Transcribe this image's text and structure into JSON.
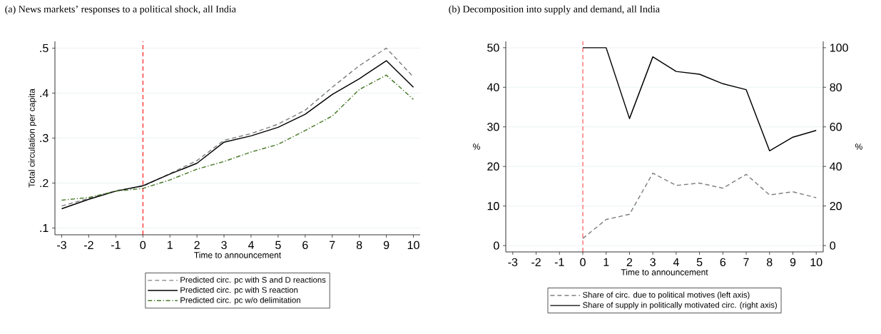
{
  "chart_data": [
    {
      "type": "line",
      "title": "(a) News markets’ responses to a political shock, all India",
      "xlabel": "Time to announcement",
      "ylabel": "Total circulation per capita",
      "x": [
        -3,
        -2,
        -1,
        0,
        1,
        2,
        3,
        4,
        5,
        6,
        7,
        8,
        9,
        10
      ],
      "series": [
        {
          "name": "Predicted circ. pc with S and D reactions",
          "color": "#808080",
          "line_style": "dashed",
          "values": [
            0.149,
            0.166,
            0.183,
            0.193,
            0.221,
            0.25,
            0.295,
            0.31,
            0.331,
            0.362,
            0.413,
            0.461,
            0.5,
            0.436
          ]
        },
        {
          "name": "Predicted circ. pc with S reaction",
          "color": "#000000",
          "line_style": "solid",
          "values": [
            0.143,
            0.164,
            0.182,
            0.194,
            0.22,
            0.244,
            0.291,
            0.305,
            0.324,
            0.353,
            0.397,
            0.432,
            0.472,
            0.413
          ]
        },
        {
          "name": "Predicted circ. pc w/o delimitation",
          "color": "#4a7a2a",
          "line_style": "dashdot",
          "values": [
            0.162,
            0.168,
            0.182,
            0.188,
            0.207,
            0.231,
            0.248,
            0.269,
            0.286,
            0.317,
            0.349,
            0.408,
            0.44,
            0.386
          ]
        }
      ],
      "xlim": [
        -3.25,
        10.25
      ],
      "xticks": [
        -3,
        -2,
        -1,
        0,
        1,
        2,
        3,
        4,
        5,
        6,
        7,
        8,
        9,
        10
      ],
      "ylim": [
        0.085,
        0.515
      ],
      "yticks": [
        {
          "value": 0.1,
          "label": ".1"
        },
        {
          "value": 0.2,
          "label": ".2"
        },
        {
          "value": 0.3,
          "label": ".3"
        },
        {
          "value": 0.4,
          "label": ".4"
        },
        {
          "value": 0.5,
          "label": ".5"
        }
      ],
      "ref_lines": [
        {
          "axis": "x",
          "value": 0,
          "color": "#ff0000",
          "line_style": "dashed"
        }
      ],
      "grid": "y",
      "legend": "bottom"
    },
    {
      "type": "line",
      "title": "(b) Decomposition into supply and demand, all India",
      "xlabel": "Time to announcement",
      "ylabel": "%",
      "y2label": "%",
      "series": [
        {
          "name": "Share of circ. due to political motives (left axis)",
          "color": "#808080",
          "line_style": "dashed",
          "x": [
            0,
            1,
            2,
            3,
            4,
            5,
            6,
            7,
            8,
            9,
            10
          ],
          "values": [
            1.8,
            6.6,
            7.9,
            18.3,
            15.2,
            15.8,
            14.5,
            18.0,
            12.8,
            13.6,
            12.1
          ]
        },
        {
          "name": "Share of supply in politically motivated circ. (right axis)",
          "color": "#000000",
          "line_style": "solid",
          "axis": "y2",
          "x": [
            0,
            1,
            2,
            3,
            4,
            5,
            6,
            7,
            8,
            9,
            10
          ],
          "values": [
            100,
            100,
            64.2,
            95.4,
            88.0,
            86.6,
            81.8,
            78.8,
            47.9,
            54.8,
            58.2
          ]
        }
      ],
      "xlim": [
        -3.3,
        10.3
      ],
      "xticks": [
        -3,
        -2,
        -1,
        0,
        1,
        2,
        3,
        4,
        5,
        6,
        7,
        8,
        9,
        10
      ],
      "ylim": [
        -1.6,
        51.6
      ],
      "yticks": [
        0,
        10,
        20,
        30,
        40,
        50
      ],
      "y2lim": [
        -3.2,
        103.2
      ],
      "y2ticks": [
        0,
        20,
        40,
        60,
        80,
        100
      ],
      "ref_lines": [
        {
          "axis": "x",
          "value": 0,
          "color": "#ff0000",
          "line_style": "dashed"
        }
      ],
      "grid": "y",
      "legend": "bottom"
    }
  ]
}
